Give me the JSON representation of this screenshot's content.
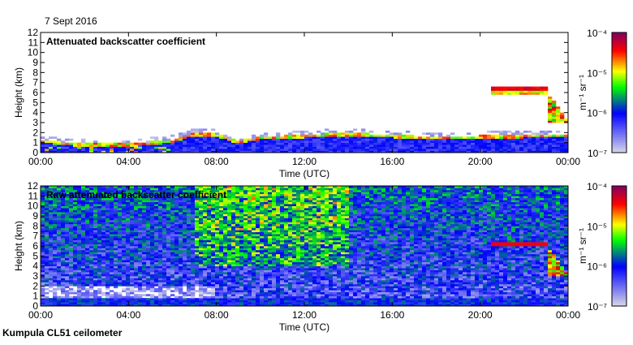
{
  "date_label": "7 Sept 2016",
  "footer": "Kumpula CL51 ceilometer",
  "colors": {
    "min": "#d8d8e8",
    "blue": "#0000ff",
    "green": "#00ff00",
    "yellow": "#ffff00",
    "red": "#ff0000",
    "max": "#800060"
  },
  "chart_data": [
    {
      "type": "heatmap",
      "title": "Attenuated backscatter coefficient",
      "xlabel": "Time (UTC)",
      "ylabel": "Height (km)",
      "xlim_hours": [
        0,
        24
      ],
      "ylim": [
        0,
        12
      ],
      "x_ticks": [
        "00:00",
        "04:00",
        "08:00",
        "12:00",
        "16:00",
        "20:00",
        "00:00"
      ],
      "y_ticks": [
        "0",
        "1",
        "2",
        "3",
        "4",
        "5",
        "6",
        "7",
        "8",
        "9",
        "10",
        "11",
        "12"
      ],
      "colorbar": {
        "label": "m⁻¹ sr⁻¹",
        "scale": "log",
        "range": [
          1e-07,
          0.0001
        ],
        "ticks": [
          "10⁻⁷",
          "10⁻⁶",
          "10⁻⁵",
          "10⁻⁴"
        ]
      },
      "boundary_layer_top_km": {
        "hours": [
          0,
          2,
          4,
          5,
          6,
          7,
          8,
          9,
          10,
          12,
          14,
          16,
          18,
          20,
          22,
          24
        ],
        "values": [
          1.3,
          0.9,
          0.9,
          1.1,
          1.3,
          2.0,
          1.9,
          1.2,
          1.6,
          1.8,
          2.0,
          1.8,
          1.6,
          1.7,
          1.8,
          1.9
        ]
      },
      "cloud_layers": [
        {
          "start_h": 20.5,
          "end_h": 23.0,
          "base_km": 5.8,
          "top_km": 6.5
        },
        {
          "start_h": 23.0,
          "end_h": 24.0,
          "base_km": 3.0,
          "top_km": 6.2
        }
      ]
    },
    {
      "type": "heatmap",
      "title": "Raw attenuated backscatter coefficient",
      "xlabel": "Time (UTC)",
      "ylabel": "Height (km)",
      "xlim_hours": [
        0,
        24
      ],
      "ylim": [
        0,
        12
      ],
      "x_ticks": [
        "00:00",
        "04:00",
        "08:00",
        "12:00",
        "16:00",
        "20:00",
        "00:00"
      ],
      "y_ticks": [
        "0",
        "1",
        "2",
        "3",
        "4",
        "5",
        "6",
        "7",
        "8",
        "9",
        "10",
        "11",
        "12"
      ],
      "colorbar": {
        "label": "m⁻¹ sr⁻¹",
        "scale": "log",
        "range": [
          1e-07,
          0.0001
        ],
        "ticks": [
          "10⁻⁷",
          "10⁻⁶",
          "10⁻⁵",
          "10⁻⁴"
        ]
      },
      "noise_level_log10": -6.3,
      "high_noise_period_hours": [
        7,
        14
      ]
    }
  ]
}
